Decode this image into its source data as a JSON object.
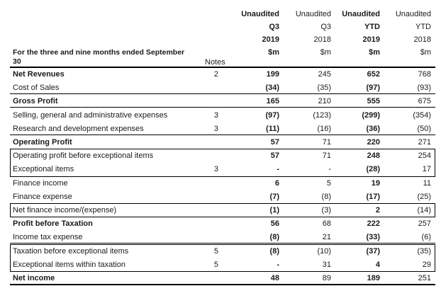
{
  "header": {
    "period_label": "For the three and nine months ended September 30",
    "notes_label": "Notes",
    "columns": [
      {
        "status": "Unaudited",
        "period": "Q3",
        "year": "2019",
        "unit": "$m"
      },
      {
        "status": "Unaudited",
        "period": "Q3",
        "year": "2018",
        "unit": "$m"
      },
      {
        "status": "Unaudited",
        "period": "YTD",
        "year": "2019",
        "unit": "$m"
      },
      {
        "status": "Unaudited",
        "period": "YTD",
        "year": "2018",
        "unit": "$m"
      }
    ]
  },
  "rows": [
    {
      "label": "Net Revenues",
      "note": "2",
      "values": [
        "199",
        "245",
        "652",
        "768"
      ]
    },
    {
      "label": "Cost of Sales",
      "note": "",
      "values": [
        "(34)",
        "(35)",
        "(97)",
        "(93)"
      ]
    },
    {
      "label": "Gross Profit",
      "note": "",
      "values": [
        "165",
        "210",
        "555",
        "675"
      ]
    },
    {
      "label": "Selling, general and administrative expenses",
      "note": "3",
      "values": [
        "(97)",
        "(123)",
        "(299)",
        "(354)"
      ]
    },
    {
      "label": "Research and development expenses",
      "note": "3",
      "values": [
        "(11)",
        "(16)",
        "(36)",
        "(50)"
      ]
    },
    {
      "label": "Operating Profit",
      "note": "",
      "values": [
        "57",
        "71",
        "220",
        "271"
      ]
    },
    {
      "label": "Operating profit before exceptional items",
      "note": "",
      "values": [
        "57",
        "71",
        "248",
        "254"
      ]
    },
    {
      "label": "Exceptional items",
      "note": "3",
      "values": [
        "-",
        "-",
        "(28)",
        "17"
      ]
    },
    {
      "label": "Finance income",
      "note": "",
      "values": [
        "6",
        "5",
        "19",
        "11"
      ]
    },
    {
      "label": "Finance expense",
      "note": "",
      "values": [
        "(7)",
        "(8)",
        "(17)",
        "(25)"
      ]
    },
    {
      "label": "Net finance income/(expense)",
      "note": "",
      "values": [
        "(1)",
        "(3)",
        "2",
        "(14)"
      ]
    },
    {
      "label": "Profit before Taxation",
      "note": "",
      "values": [
        "56",
        "68",
        "222",
        "257"
      ]
    },
    {
      "label": "Income tax expense",
      "note": "",
      "values": [
        "(8)",
        "21",
        "(33)",
        "(6)"
      ]
    },
    {
      "label": "Taxation before exceptional items",
      "note": "5",
      "values": [
        "(8)",
        "(10)",
        "(37)",
        "(35)"
      ]
    },
    {
      "label": "Exceptional items within taxation",
      "note": "5",
      "values": [
        "-",
        "31",
        "4",
        "29"
      ]
    },
    {
      "label": "Net income",
      "note": "",
      "values": [
        "48",
        "89",
        "189",
        "251"
      ]
    }
  ]
}
